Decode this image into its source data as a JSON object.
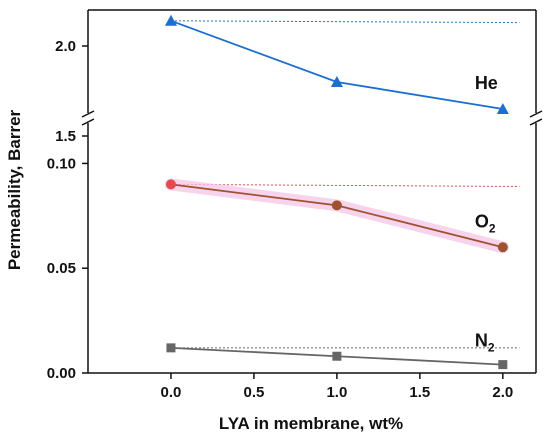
{
  "chart_data": {
    "type": "line",
    "xlabel": "LYA in membrane, wt%",
    "ylabel": "Permeability, Barrer",
    "x": [
      0.0,
      1.0,
      2.0
    ],
    "x_ticks": [
      "0.0",
      "0.5",
      "1.0",
      "1.5",
      "2.0"
    ],
    "x_tick_values": [
      0.0,
      0.5,
      1.0,
      1.5,
      2.0
    ],
    "xlim": [
      -0.5,
      2.2
    ],
    "broken_y_axis": true,
    "upper_panel": {
      "ylim": [
        1.5,
        2.2
      ],
      "y_ticks": [
        "2.0",
        "1.5"
      ],
      "y_tick_values": [
        2.0,
        1.5
      ]
    },
    "lower_panel": {
      "ylim": [
        0.0,
        0.115
      ],
      "y_ticks": [
        "0.10",
        "0.05",
        "0.00"
      ],
      "y_tick_values": [
        0.1,
        0.05,
        0.0
      ]
    },
    "series": [
      {
        "name": "He",
        "label_main": "He",
        "label_sub": "",
        "panel": "upper",
        "values": [
          2.14,
          1.8,
          1.65
        ],
        "marker": "triangle",
        "color": "#1a6fd4",
        "reference_value": 2.14,
        "reference_end": 2.13
      },
      {
        "name": "O2",
        "label_main": "O",
        "label_sub": "2",
        "panel": "lower",
        "values": [
          0.09,
          0.08,
          0.06
        ],
        "marker": "circle",
        "color": "#a0522d",
        "first_color": "#e84a4a",
        "reference_value": 0.09,
        "reference_end": 0.089,
        "reference_color": "#e84a4a",
        "band_color": "#f4c6e8"
      },
      {
        "name": "N2",
        "label_main": "N",
        "label_sub": "2",
        "panel": "lower",
        "values": [
          0.012,
          0.008,
          0.004
        ],
        "marker": "square",
        "color": "#666666",
        "reference_value": 0.012,
        "reference_end": 0.012
      }
    ],
    "grid": false,
    "legend": "none"
  }
}
